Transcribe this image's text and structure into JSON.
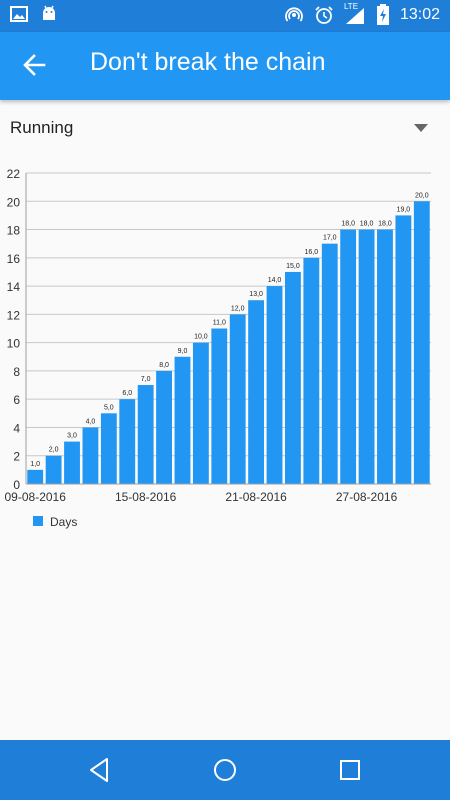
{
  "status_bar": {
    "time": "13:02",
    "network_label": "LTE",
    "left_icons": [
      "image-icon",
      "android-icon"
    ],
    "right_icons": [
      "hotspot-icon",
      "alarm-icon",
      "signal-icon",
      "battery-charging-icon"
    ]
  },
  "app_bar": {
    "title": "Don't break the chain",
    "background": "#2196f3"
  },
  "spinner": {
    "selected": "Running"
  },
  "chart_data": {
    "type": "bar",
    "series": [
      {
        "name": "Days",
        "color": "#2196f3",
        "values": [
          1,
          2,
          3,
          4,
          5,
          6,
          7,
          8,
          9,
          10,
          11,
          12,
          13,
          14,
          15,
          16,
          17,
          18,
          18,
          18,
          19,
          20
        ],
        "value_labels": [
          "1,0",
          "2,0",
          "3,0",
          "4,0",
          "5,0",
          "6,0",
          "7,0",
          "8,0",
          "9,0",
          "10,0",
          "11,0",
          "12,0",
          "13,0",
          "14,0",
          "15,0",
          "16,0",
          "17,0",
          "18,0",
          "18,0",
          "18,0",
          "19,0",
          "20,0"
        ]
      }
    ],
    "x_tick_labels": [
      {
        "index": 0,
        "label": "09-08-2016"
      },
      {
        "index": 6,
        "label": "15-08-2016"
      },
      {
        "index": 12,
        "label": "21-08-2016"
      },
      {
        "index": 18,
        "label": "27-08-2016"
      }
    ],
    "y_ticks": [
      0,
      2,
      4,
      6,
      8,
      10,
      12,
      14,
      16,
      18,
      20,
      22
    ],
    "ylim": [
      0,
      22
    ],
    "grid": "horizontal",
    "legend": "bottom-left"
  },
  "nav_bar": {
    "buttons": [
      "back-triangle-icon",
      "home-circle-icon",
      "recents-square-icon"
    ]
  }
}
